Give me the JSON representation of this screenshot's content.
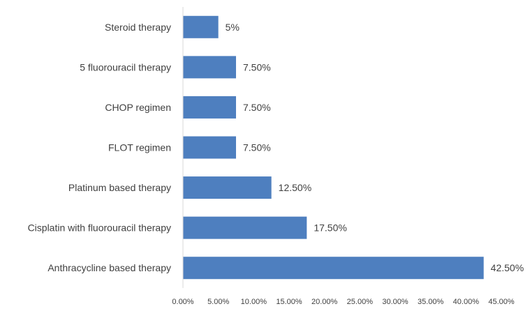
{
  "chart_data": {
    "type": "bar",
    "orientation": "horizontal",
    "title": "",
    "xlabel": "",
    "ylabel": "",
    "categories": [
      "Steroid therapy",
      "5 fluorouracil therapy",
      "CHOP regimen",
      "FLOT regimen",
      "Platinum based therapy",
      "Cisplatin with fluorouracil therapy",
      "Anthracycline based therapy"
    ],
    "values": [
      5,
      7.5,
      7.5,
      7.5,
      12.5,
      17.5,
      42.5
    ],
    "data_labels": [
      "5%",
      "7.50%",
      "7.50%",
      "7.50%",
      "12.50%",
      "17.50%",
      "42.50%"
    ],
    "x_ticks": [
      "0.00%",
      "5.00%",
      "10.00%",
      "15.00%",
      "20.00%",
      "25.00%",
      "30.00%",
      "35.00%",
      "40.00%",
      "45.00%"
    ],
    "xlim": [
      0,
      45
    ],
    "grid": false,
    "legend": "none",
    "bar_color": "#4e7fbf"
  }
}
